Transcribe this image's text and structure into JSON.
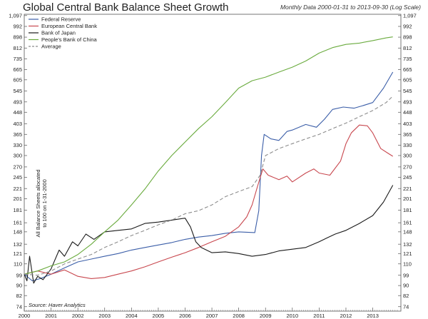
{
  "header": {
    "title": "Global Central Bank Balance Sheet Growth",
    "subtitle": "Monthly Data 2000-01-31 to 2013-09-30 (Log Scale)"
  },
  "chart_data": {
    "type": "line",
    "title": "Global Central Bank Balance Sheet Growth",
    "subtitle": "Monthly Data 2000-01-31 to 2013-09-30 (Log Scale)",
    "ylabel": "All Balance Sheets allocated to 100 on 1-31-2000",
    "source": "Source: Haver Analytics",
    "y_scale": "log",
    "ylim": [
      71,
      1110
    ],
    "xlim": [
      2000.0,
      2014.05
    ],
    "grid": false,
    "legend_position": "top-left",
    "y_ticks": [
      74,
      82,
      90,
      99,
      110,
      121,
      132,
      148,
      161,
      181,
      201,
      221,
      245,
      270,
      300,
      330,
      365,
      403,
      448,
      493,
      545,
      605,
      665,
      735,
      812,
      898,
      992,
      1097
    ],
    "y_tick_labels": [
      "74",
      "82",
      "90",
      "99",
      "110",
      "121",
      "132",
      "148",
      "161",
      "181",
      "201",
      "221",
      "245",
      "270",
      "300",
      "330",
      "365",
      "403",
      "448",
      "493",
      "545",
      "605",
      "665",
      "735",
      "812",
      "898",
      "992",
      "1,097"
    ],
    "x_ticks": [
      "2000",
      "2001",
      "2002",
      "2003",
      "2004",
      "2005",
      "2006",
      "2007",
      "2008",
      "2009",
      "2010",
      "2011",
      "2012",
      "2013"
    ],
    "series": [
      {
        "name": "Federal Reserve",
        "color": "#3b5ea8",
        "dash": "",
        "points": [
          [
            2000.0,
            100
          ],
          [
            2000.3,
            94
          ],
          [
            2000.6,
            96
          ],
          [
            2001.0,
            100
          ],
          [
            2001.5,
            106
          ],
          [
            2002.0,
            112
          ],
          [
            2002.5,
            115
          ],
          [
            2003.0,
            118
          ],
          [
            2003.5,
            121
          ],
          [
            2004.0,
            125
          ],
          [
            2004.5,
            128
          ],
          [
            2005.0,
            131
          ],
          [
            2005.5,
            134
          ],
          [
            2006.0,
            138
          ],
          [
            2006.5,
            141
          ],
          [
            2007.0,
            143
          ],
          [
            2007.5,
            146
          ],
          [
            2008.0,
            148
          ],
          [
            2008.6,
            147
          ],
          [
            2008.75,
            180
          ],
          [
            2008.85,
            300
          ],
          [
            2008.95,
            365
          ],
          [
            2009.2,
            350
          ],
          [
            2009.5,
            345
          ],
          [
            2009.8,
            375
          ],
          [
            2010.0,
            380
          ],
          [
            2010.5,
            400
          ],
          [
            2010.9,
            390
          ],
          [
            2011.2,
            420
          ],
          [
            2011.5,
            460
          ],
          [
            2011.9,
            470
          ],
          [
            2012.3,
            465
          ],
          [
            2012.6,
            475
          ],
          [
            2013.0,
            490
          ],
          [
            2013.4,
            560
          ],
          [
            2013.75,
            650
          ]
        ]
      },
      {
        "name": "European Central Bank",
        "color": "#c8474e",
        "dash": "",
        "points": [
          [
            2000.0,
            100
          ],
          [
            2000.5,
            103
          ],
          [
            2001.0,
            100
          ],
          [
            2001.5,
            104
          ],
          [
            2002.0,
            98
          ],
          [
            2002.5,
            96
          ],
          [
            2003.0,
            97
          ],
          [
            2003.5,
            100
          ],
          [
            2004.0,
            103
          ],
          [
            2004.5,
            107
          ],
          [
            2005.0,
            112
          ],
          [
            2005.5,
            117
          ],
          [
            2006.0,
            122
          ],
          [
            2006.5,
            128
          ],
          [
            2007.0,
            135
          ],
          [
            2007.5,
            142
          ],
          [
            2008.0,
            155
          ],
          [
            2008.3,
            170
          ],
          [
            2008.5,
            190
          ],
          [
            2008.7,
            225
          ],
          [
            2008.9,
            265
          ],
          [
            2009.1,
            250
          ],
          [
            2009.5,
            240
          ],
          [
            2009.8,
            248
          ],
          [
            2010.0,
            235
          ],
          [
            2010.5,
            255
          ],
          [
            2010.8,
            265
          ],
          [
            2011.0,
            255
          ],
          [
            2011.4,
            250
          ],
          [
            2011.8,
            285
          ],
          [
            2012.0,
            335
          ],
          [
            2012.2,
            370
          ],
          [
            2012.5,
            398
          ],
          [
            2012.8,
            395
          ],
          [
            2013.0,
            370
          ],
          [
            2013.3,
            320
          ],
          [
            2013.6,
            305
          ],
          [
            2013.75,
            298
          ]
        ]
      },
      {
        "name": "Bank of Japan",
        "color": "#1a1a1a",
        "dash": "",
        "points": [
          [
            2000.0,
            100
          ],
          [
            2000.1,
            94
          ],
          [
            2000.2,
            118
          ],
          [
            2000.35,
            92
          ],
          [
            2000.5,
            98
          ],
          [
            2000.7,
            95
          ],
          [
            2001.0,
            105
          ],
          [
            2001.3,
            125
          ],
          [
            2001.5,
            118
          ],
          [
            2001.8,
            135
          ],
          [
            2002.0,
            130
          ],
          [
            2002.3,
            145
          ],
          [
            2002.6,
            138
          ],
          [
            2003.0,
            148
          ],
          [
            2003.5,
            150
          ],
          [
            2004.0,
            152
          ],
          [
            2004.5,
            160
          ],
          [
            2005.0,
            162
          ],
          [
            2005.5,
            165
          ],
          [
            2006.0,
            168
          ],
          [
            2006.2,
            155
          ],
          [
            2006.4,
            135
          ],
          [
            2006.6,
            128
          ],
          [
            2007.0,
            122
          ],
          [
            2007.5,
            123
          ],
          [
            2008.0,
            121
          ],
          [
            2008.5,
            118
          ],
          [
            2009.0,
            120
          ],
          [
            2009.5,
            124
          ],
          [
            2010.0,
            126
          ],
          [
            2010.5,
            128
          ],
          [
            2011.0,
            135
          ],
          [
            2011.3,
            140
          ],
          [
            2011.6,
            145
          ],
          [
            2012.0,
            150
          ],
          [
            2012.5,
            160
          ],
          [
            2013.0,
            172
          ],
          [
            2013.4,
            195
          ],
          [
            2013.75,
            228
          ]
        ]
      },
      {
        "name": "People's Bank of China",
        "color": "#6aab3e",
        "dash": "",
        "points": [
          [
            2000.0,
            100
          ],
          [
            2000.5,
            103
          ],
          [
            2001.0,
            108
          ],
          [
            2001.5,
            112
          ],
          [
            2002.0,
            120
          ],
          [
            2002.5,
            132
          ],
          [
            2003.0,
            148
          ],
          [
            2003.5,
            165
          ],
          [
            2004.0,
            190
          ],
          [
            2004.5,
            220
          ],
          [
            2005.0,
            260
          ],
          [
            2005.5,
            300
          ],
          [
            2006.0,
            340
          ],
          [
            2006.5,
            385
          ],
          [
            2007.0,
            430
          ],
          [
            2007.5,
            490
          ],
          [
            2008.0,
            560
          ],
          [
            2008.5,
            600
          ],
          [
            2009.0,
            620
          ],
          [
            2009.5,
            650
          ],
          [
            2010.0,
            680
          ],
          [
            2010.5,
            720
          ],
          [
            2011.0,
            775
          ],
          [
            2011.5,
            815
          ],
          [
            2012.0,
            840
          ],
          [
            2012.5,
            850
          ],
          [
            2013.0,
            870
          ],
          [
            2013.5,
            892
          ],
          [
            2013.75,
            900
          ]
        ]
      },
      {
        "name": "Average",
        "color": "#8c8c8c",
        "dash": "5,3",
        "points": [
          [
            2000.0,
            100
          ],
          [
            2000.5,
            99
          ],
          [
            2001.0,
            103
          ],
          [
            2001.5,
            110
          ],
          [
            2002.0,
            115
          ],
          [
            2002.5,
            120
          ],
          [
            2003.0,
            128
          ],
          [
            2003.5,
            135
          ],
          [
            2004.0,
            143
          ],
          [
            2004.5,
            150
          ],
          [
            2005.0,
            158
          ],
          [
            2005.5,
            165
          ],
          [
            2006.0,
            175
          ],
          [
            2006.5,
            180
          ],
          [
            2007.0,
            190
          ],
          [
            2007.5,
            205
          ],
          [
            2008.0,
            215
          ],
          [
            2008.5,
            225
          ],
          [
            2008.8,
            250
          ],
          [
            2009.0,
            300
          ],
          [
            2009.5,
            320
          ],
          [
            2010.0,
            335
          ],
          [
            2010.5,
            350
          ],
          [
            2011.0,
            365
          ],
          [
            2011.5,
            385
          ],
          [
            2012.0,
            405
          ],
          [
            2012.5,
            430
          ],
          [
            2013.0,
            455
          ],
          [
            2013.5,
            490
          ],
          [
            2013.75,
            520
          ]
        ]
      }
    ]
  }
}
